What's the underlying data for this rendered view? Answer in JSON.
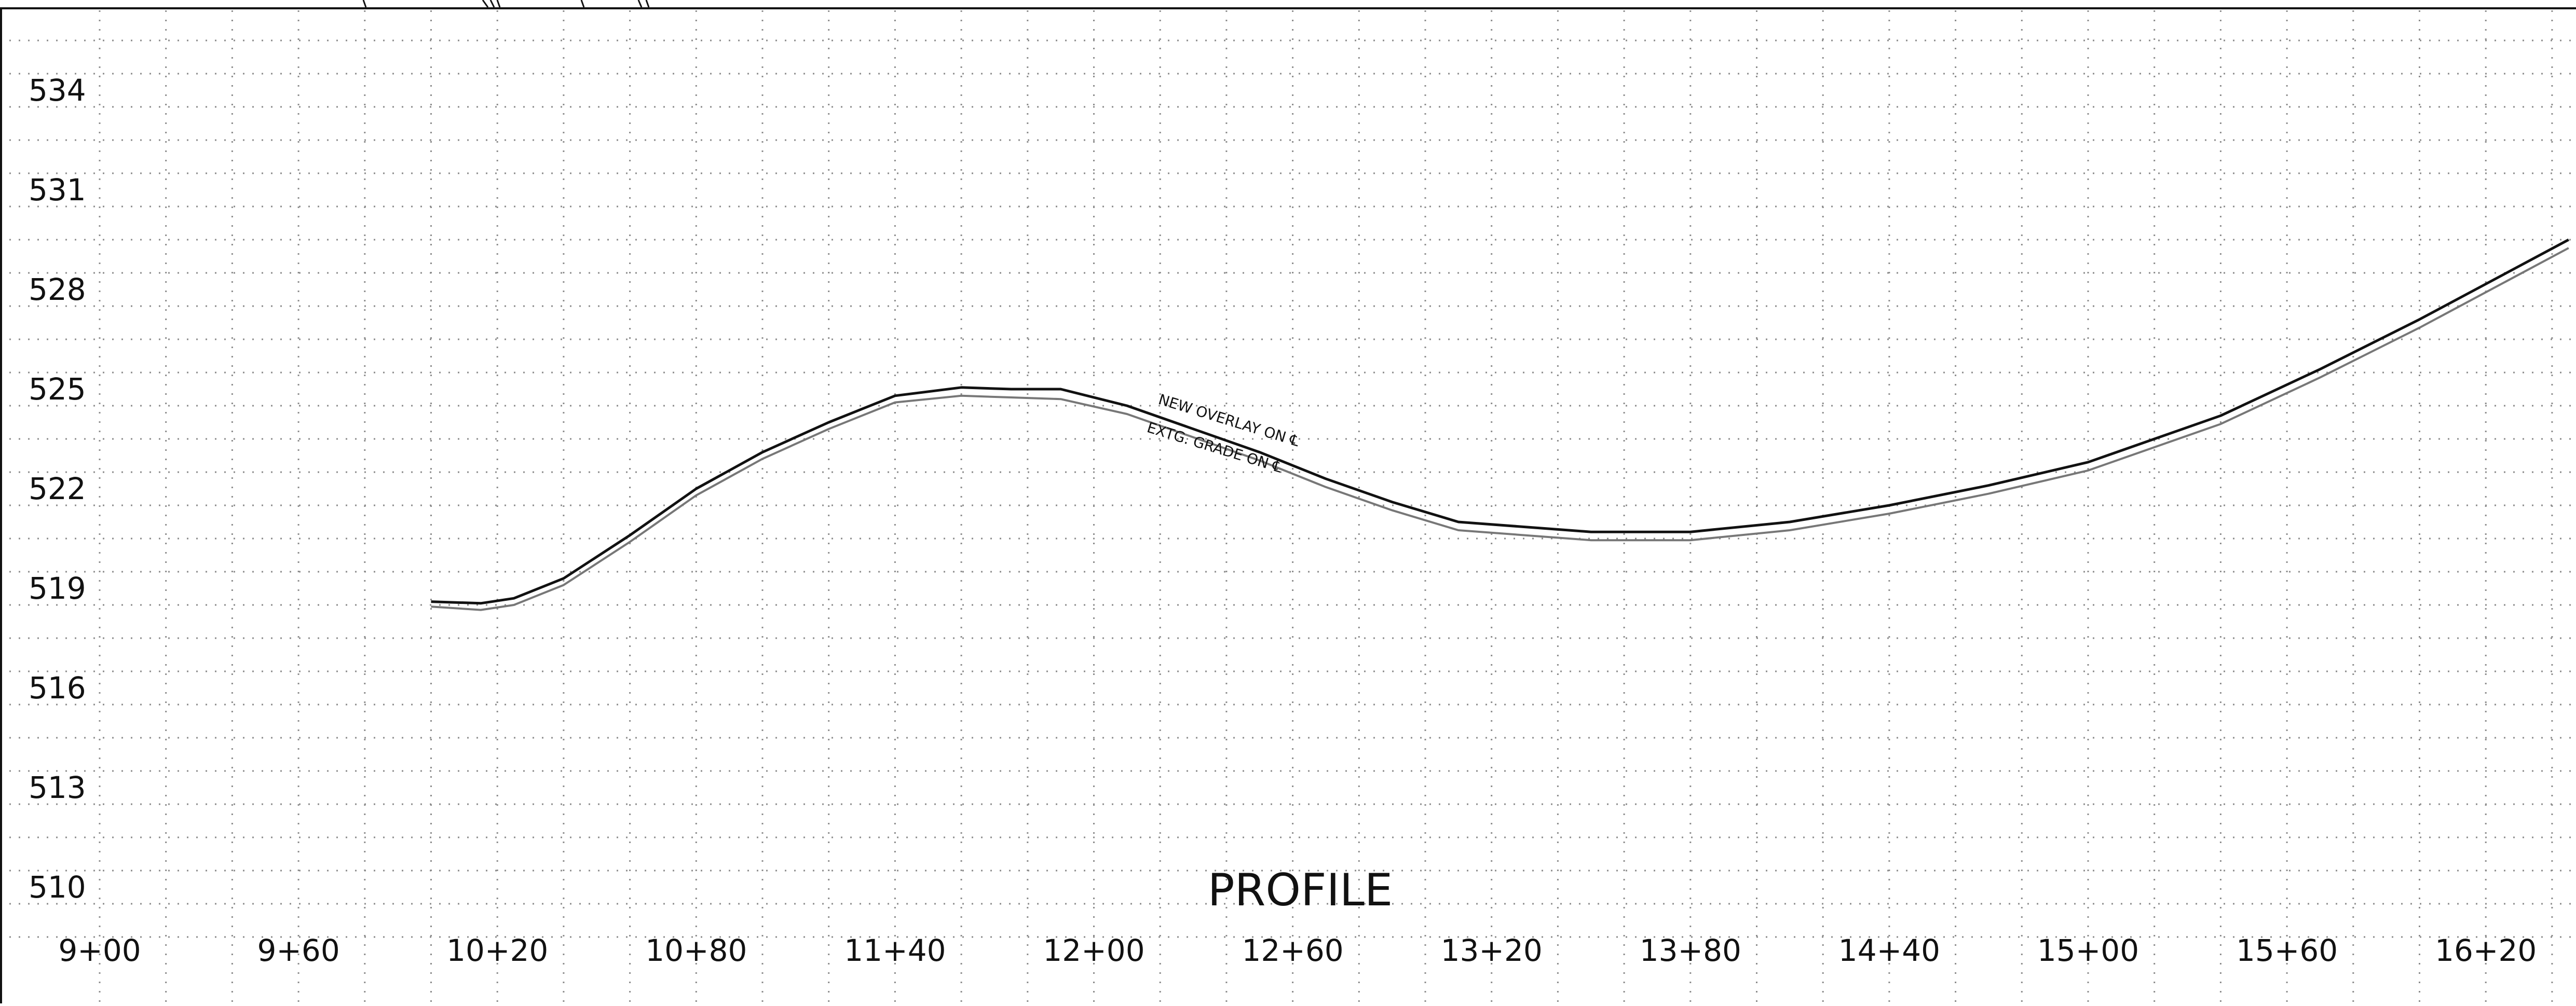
{
  "chart_data": {
    "type": "line",
    "title": "PROFILE",
    "xlabel": "",
    "ylabel": "",
    "x_ticks": [
      "9+00",
      "9+60",
      "10+20",
      "10+80",
      "11+40",
      "12+00",
      "12+60",
      "13+20",
      "13+80",
      "14+40",
      "15+00",
      "15+60",
      "16+20"
    ],
    "y_ticks": [
      "534",
      "531",
      "528",
      "525",
      "522",
      "519",
      "516",
      "513",
      "510"
    ],
    "xlim": [
      900,
      1650
    ],
    "ylim": [
      508.5,
      537
    ],
    "grid": true,
    "annotations": [
      "NEW OVERLAY ON ℄",
      "EXTG. GRADE ON ℄"
    ],
    "series": [
      {
        "name": "NEW OVERLAY ON ℄",
        "color": "#111111",
        "x": [
          1000,
          1015,
          1025,
          1040,
          1060,
          1080,
          1100,
          1120,
          1140,
          1160,
          1175,
          1190,
          1210,
          1250,
          1270,
          1290,
          1310,
          1350,
          1380,
          1410,
          1440,
          1470,
          1500,
          1520,
          1540,
          1570,
          1600,
          1630,
          1645
        ],
        "y": [
          519.1,
          519.05,
          519.2,
          519.8,
          521.1,
          522.5,
          523.6,
          524.5,
          525.3,
          525.55,
          525.5,
          525.5,
          525.0,
          523.6,
          522.8,
          522.1,
          521.5,
          521.2,
          521.2,
          521.5,
          522.0,
          522.6,
          523.3,
          524.0,
          524.7,
          526.1,
          527.6,
          529.2,
          530.0
        ]
      },
      {
        "name": "EXTG. GRADE ON ℄",
        "color": "#777777",
        "x": [
          1000,
          1015,
          1025,
          1040,
          1060,
          1080,
          1100,
          1120,
          1140,
          1160,
          1175,
          1190,
          1210,
          1250,
          1270,
          1290,
          1310,
          1350,
          1380,
          1410,
          1440,
          1470,
          1500,
          1520,
          1540,
          1570,
          1600,
          1630,
          1645
        ],
        "y": [
          518.95,
          518.85,
          519.0,
          519.6,
          520.9,
          522.3,
          523.4,
          524.3,
          525.1,
          525.3,
          525.25,
          525.2,
          524.75,
          523.35,
          522.55,
          521.85,
          521.25,
          520.95,
          520.95,
          521.25,
          521.75,
          522.35,
          523.05,
          523.75,
          524.45,
          525.85,
          527.35,
          528.95,
          529.75
        ]
      }
    ]
  }
}
